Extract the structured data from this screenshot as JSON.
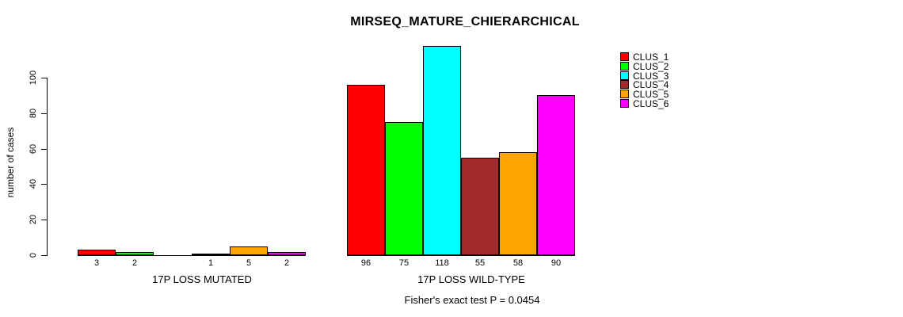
{
  "chart_data": {
    "type": "bar",
    "title": "MIRSEQ_MATURE_CHIERARCHICAL",
    "ylabel": "number of cases",
    "subtitle": "Fisher's exact test P = 0.0454",
    "yticks": [
      0,
      20,
      40,
      60,
      80,
      100
    ],
    "ylim": [
      0,
      118
    ],
    "grid": "off",
    "legend_position": "right",
    "clusters": [
      "CLUS_1",
      "CLUS_2",
      "CLUS_3",
      "CLUS_4",
      "CLUS_5",
      "CLUS_6"
    ],
    "colors": [
      "#FF0000",
      "#00FF00",
      "#00FFFF",
      "#A52A2A",
      "#FFA500",
      "#FF00FF"
    ],
    "groups": [
      {
        "label": "17P LOSS MUTATED",
        "values": [
          3,
          2,
          0,
          1,
          5,
          2
        ],
        "value_labels": [
          "3",
          "2",
          "",
          "1",
          "5",
          "2"
        ]
      },
      {
        "label": "17P LOSS WILD-TYPE",
        "values": [
          96,
          75,
          118,
          55,
          58,
          90
        ],
        "value_labels": [
          "96",
          "75",
          "118",
          "55",
          "58",
          "90"
        ]
      }
    ]
  }
}
